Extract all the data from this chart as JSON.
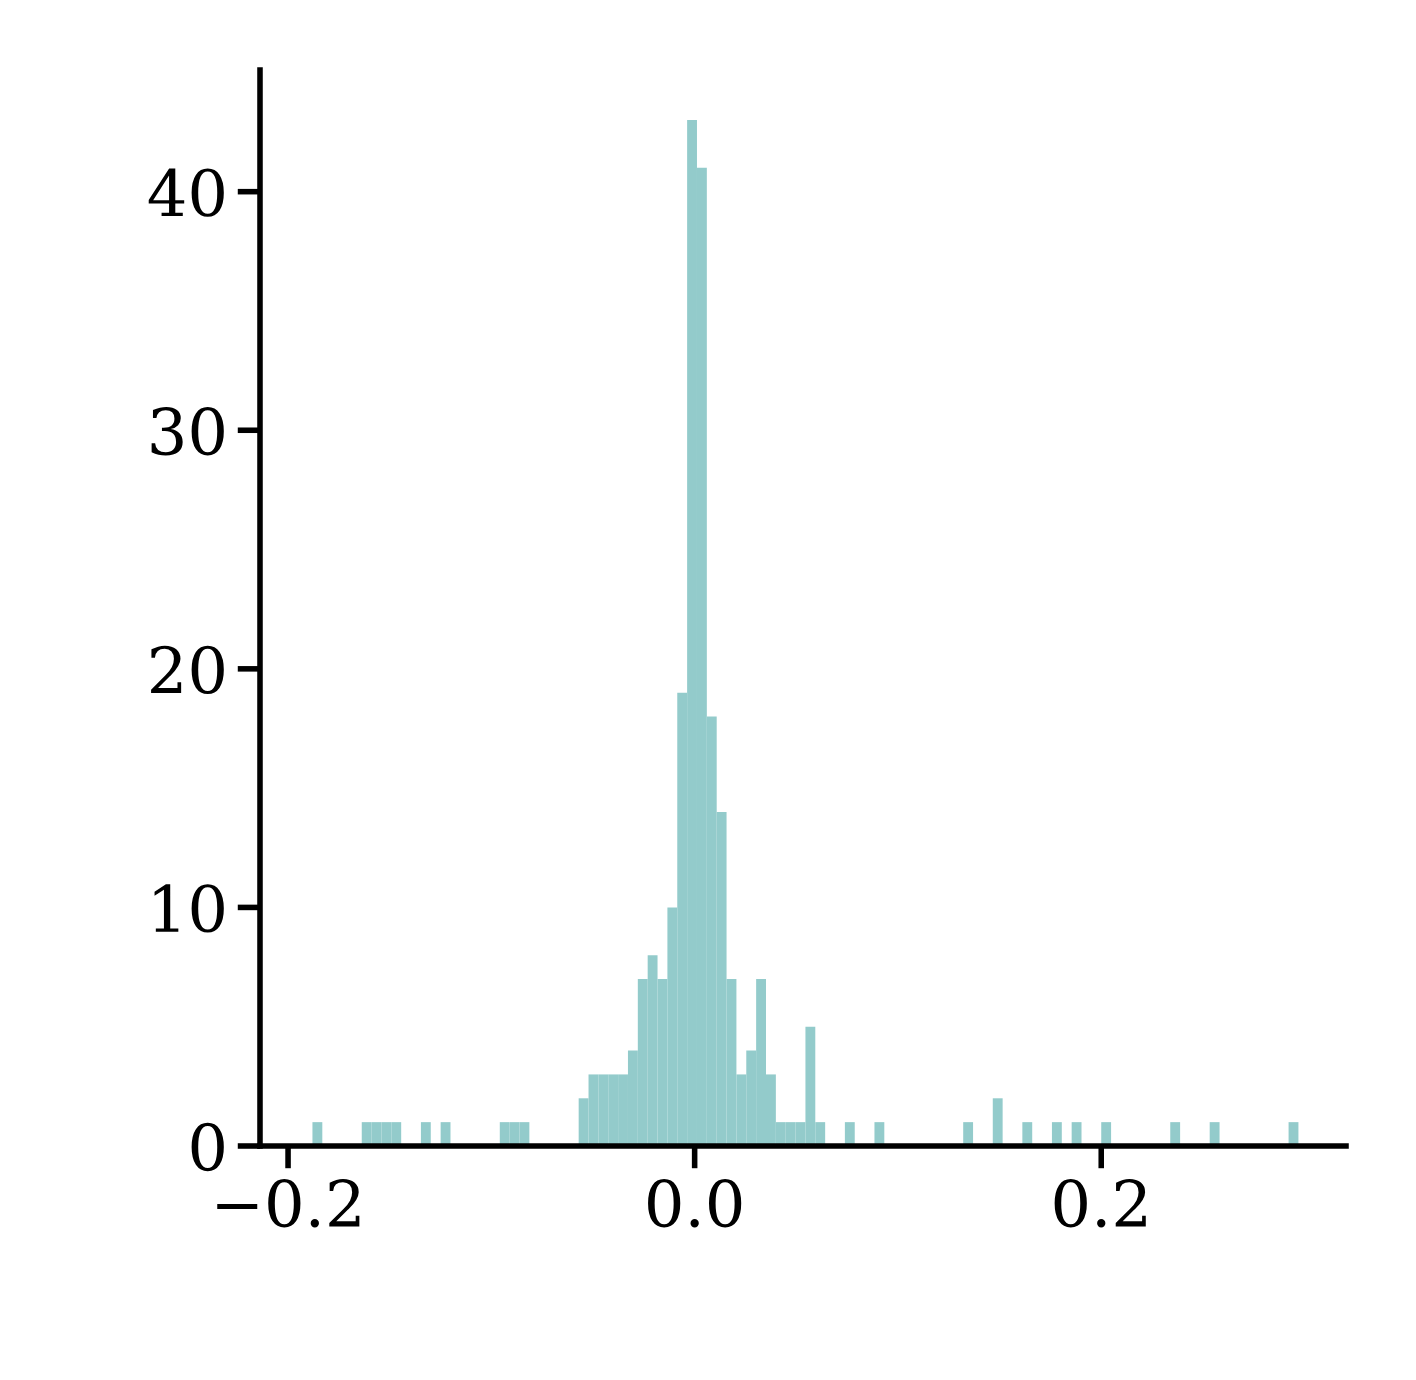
{
  "chart_data": {
    "type": "histogram",
    "color": "#93cbcb",
    "bins": [
      -0.188,
      -0.18315,
      -0.1783,
      -0.17345,
      -0.1686,
      -0.16375,
      -0.1589,
      -0.15405,
      -0.1492,
      -0.14435,
      -0.1395,
      -0.13465,
      -0.1298,
      -0.12495,
      -0.1201,
      -0.11525,
      -0.1104,
      -0.10555,
      -0.1007,
      -0.09585,
      -0.091,
      -0.08615,
      -0.0813,
      -0.07645,
      -0.0716,
      -0.06675,
      -0.0619,
      -0.05705,
      -0.0522,
      -0.04735,
      -0.0425,
      -0.03765,
      -0.0328,
      -0.02795,
      -0.0231,
      -0.01825,
      -0.0134,
      -0.00855,
      -0.0037,
      0.00115,
      0.006,
      0.01085,
      0.0157,
      0.02055,
      0.0254,
      0.03025,
      0.0351,
      0.03995,
      0.0448,
      0.04965,
      0.0545,
      0.05935,
      0.0642,
      0.06905,
      0.0739,
      0.07875,
      0.0836,
      0.08845,
      0.0933,
      0.09815,
      0.103,
      0.10785,
      0.1127,
      0.11755,
      0.1224,
      0.12725,
      0.1321,
      0.13695,
      0.1418,
      0.14665,
      0.1515,
      0.15635,
      0.1612,
      0.16605,
      0.1709,
      0.17575,
      0.1806,
      0.18545,
      0.1903,
      0.19515,
      0.2,
      0.20485,
      0.2097,
      0.21455,
      0.2194,
      0.22425,
      0.2291,
      0.23395,
      0.2388,
      0.24365,
      0.2485,
      0.25335,
      0.2582,
      0.26305,
      0.2679,
      0.27275,
      0.2776,
      0.28245,
      0.2873,
      0.29215,
      0.297
    ],
    "values": [
      1,
      0,
      0,
      0,
      0,
      1,
      1,
      1,
      1,
      0,
      0,
      1,
      0,
      1,
      0,
      0,
      0,
      0,
      0,
      1,
      1,
      1,
      0,
      0,
      0,
      0,
      0,
      2,
      3,
      3,
      3,
      3,
      4,
      7,
      8,
      7,
      10,
      19,
      43,
      41,
      18,
      14,
      7,
      3,
      4,
      7,
      3,
      1,
      1,
      1,
      5,
      1,
      0,
      0,
      1,
      0,
      0,
      1,
      0,
      0,
      0,
      0,
      0,
      0,
      0,
      0,
      1,
      0,
      0,
      2,
      0,
      0,
      1,
      0,
      0,
      1,
      0,
      1,
      0,
      0,
      1,
      0,
      0,
      0,
      0,
      0,
      0,
      1,
      0,
      0,
      0,
      1,
      0,
      0,
      0,
      0,
      0,
      0,
      0,
      1
    ],
    "xlim": [
      -0.2138,
      0.3204
    ],
    "ylim": [
      0,
      45.1
    ],
    "xticks": [
      {
        "value": -0.2,
        "label": "−0.2"
      },
      {
        "value": 0.0,
        "label": "0.0"
      },
      0.2
    ],
    "yticks": [
      0,
      10,
      20,
      30,
      40
    ],
    "grid": false
  }
}
